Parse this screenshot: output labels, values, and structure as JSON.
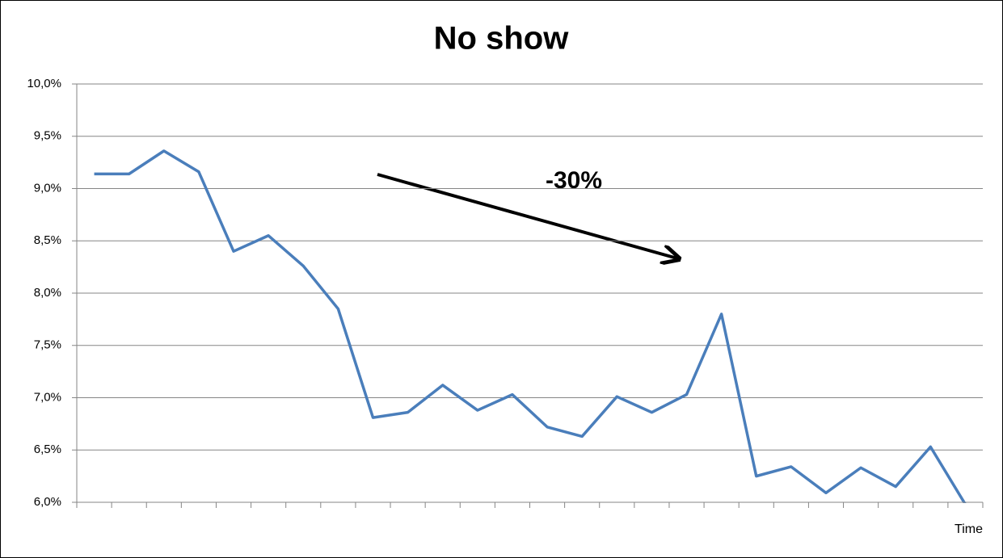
{
  "chart_data": {
    "type": "line",
    "title": "No show",
    "x_label": "Time",
    "annotation": "-30%",
    "categories": [
      null,
      null,
      null,
      null,
      null,
      null,
      null,
      null,
      null,
      null,
      null,
      null,
      null,
      null,
      null,
      null,
      null,
      null,
      null,
      null,
      null,
      null,
      null,
      null,
      null,
      null
    ],
    "series": [
      {
        "color": "#4a7ebb",
        "values": [
          9.14,
          9.14,
          9.36,
          9.16,
          8.4,
          8.55,
          8.26,
          7.85,
          6.81,
          6.86,
          7.12,
          6.88,
          7.03,
          6.72,
          6.63,
          7.01,
          6.86,
          7.03,
          7.8,
          6.25,
          6.34,
          6.09,
          6.33,
          6.15,
          6.53,
          5.98
        ]
      }
    ],
    "ylim": [
      6,
      10
    ],
    "yticks": [
      {
        "value": 6,
        "label": "6,0%"
      },
      {
        "value": 6.5,
        "label": "6,5%"
      },
      {
        "value": 7,
        "label": "7,0%"
      },
      {
        "value": 7.5,
        "label": "7,5%"
      },
      {
        "value": 8,
        "label": "8,0%"
      },
      {
        "value": 8.5,
        "label": "8,5%"
      },
      {
        "value": 9,
        "label": "9,0%"
      },
      {
        "value": 9.5,
        "label": "9,5%"
      },
      {
        "value": 10,
        "label": "10,0%"
      }
    ],
    "grid": true
  }
}
